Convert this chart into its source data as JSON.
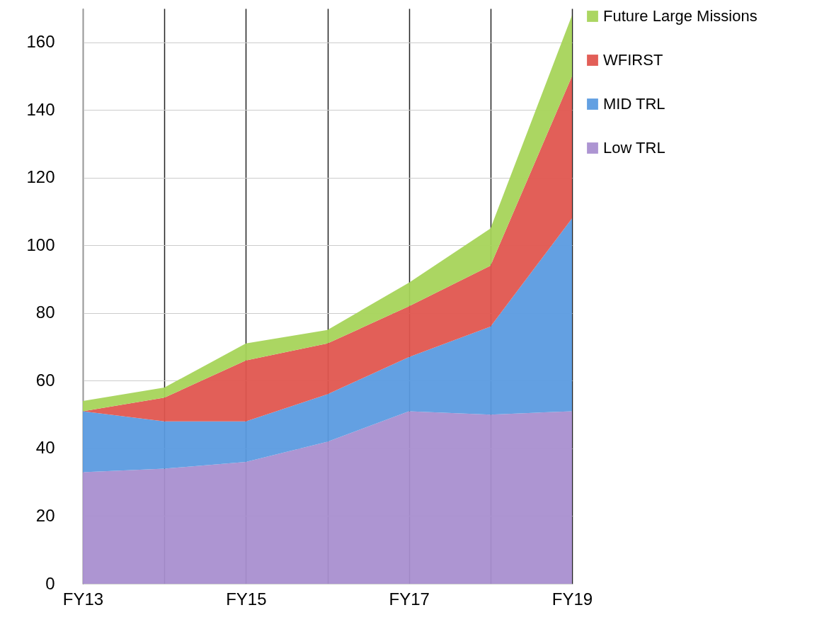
{
  "chart_data": {
    "type": "area",
    "stacked": true,
    "categories": [
      "FY13",
      null,
      "FY15",
      null,
      "FY17",
      null,
      "FY19"
    ],
    "series": [
      {
        "name": "Low TRL",
        "color": "#a98fd0",
        "values": [
          33,
          34,
          36,
          42,
          51,
          50,
          51
        ]
      },
      {
        "name": "MID TRL",
        "color": "#5b9be0",
        "values": [
          18,
          14,
          12,
          14,
          16,
          26,
          57
        ]
      },
      {
        "name": "WFIRST",
        "color": "#e0564f",
        "values": [
          0,
          7,
          18,
          15,
          15,
          18,
          42
        ]
      },
      {
        "name": "Future Large Missions",
        "color": "#a6d45a",
        "values": [
          3,
          3,
          5,
          4,
          7,
          11,
          18
        ]
      }
    ],
    "ylim": [
      0,
      170
    ],
    "yticks": [
      0,
      20,
      40,
      60,
      80,
      100,
      120,
      140,
      160
    ],
    "grid": true,
    "legend": "right"
  }
}
